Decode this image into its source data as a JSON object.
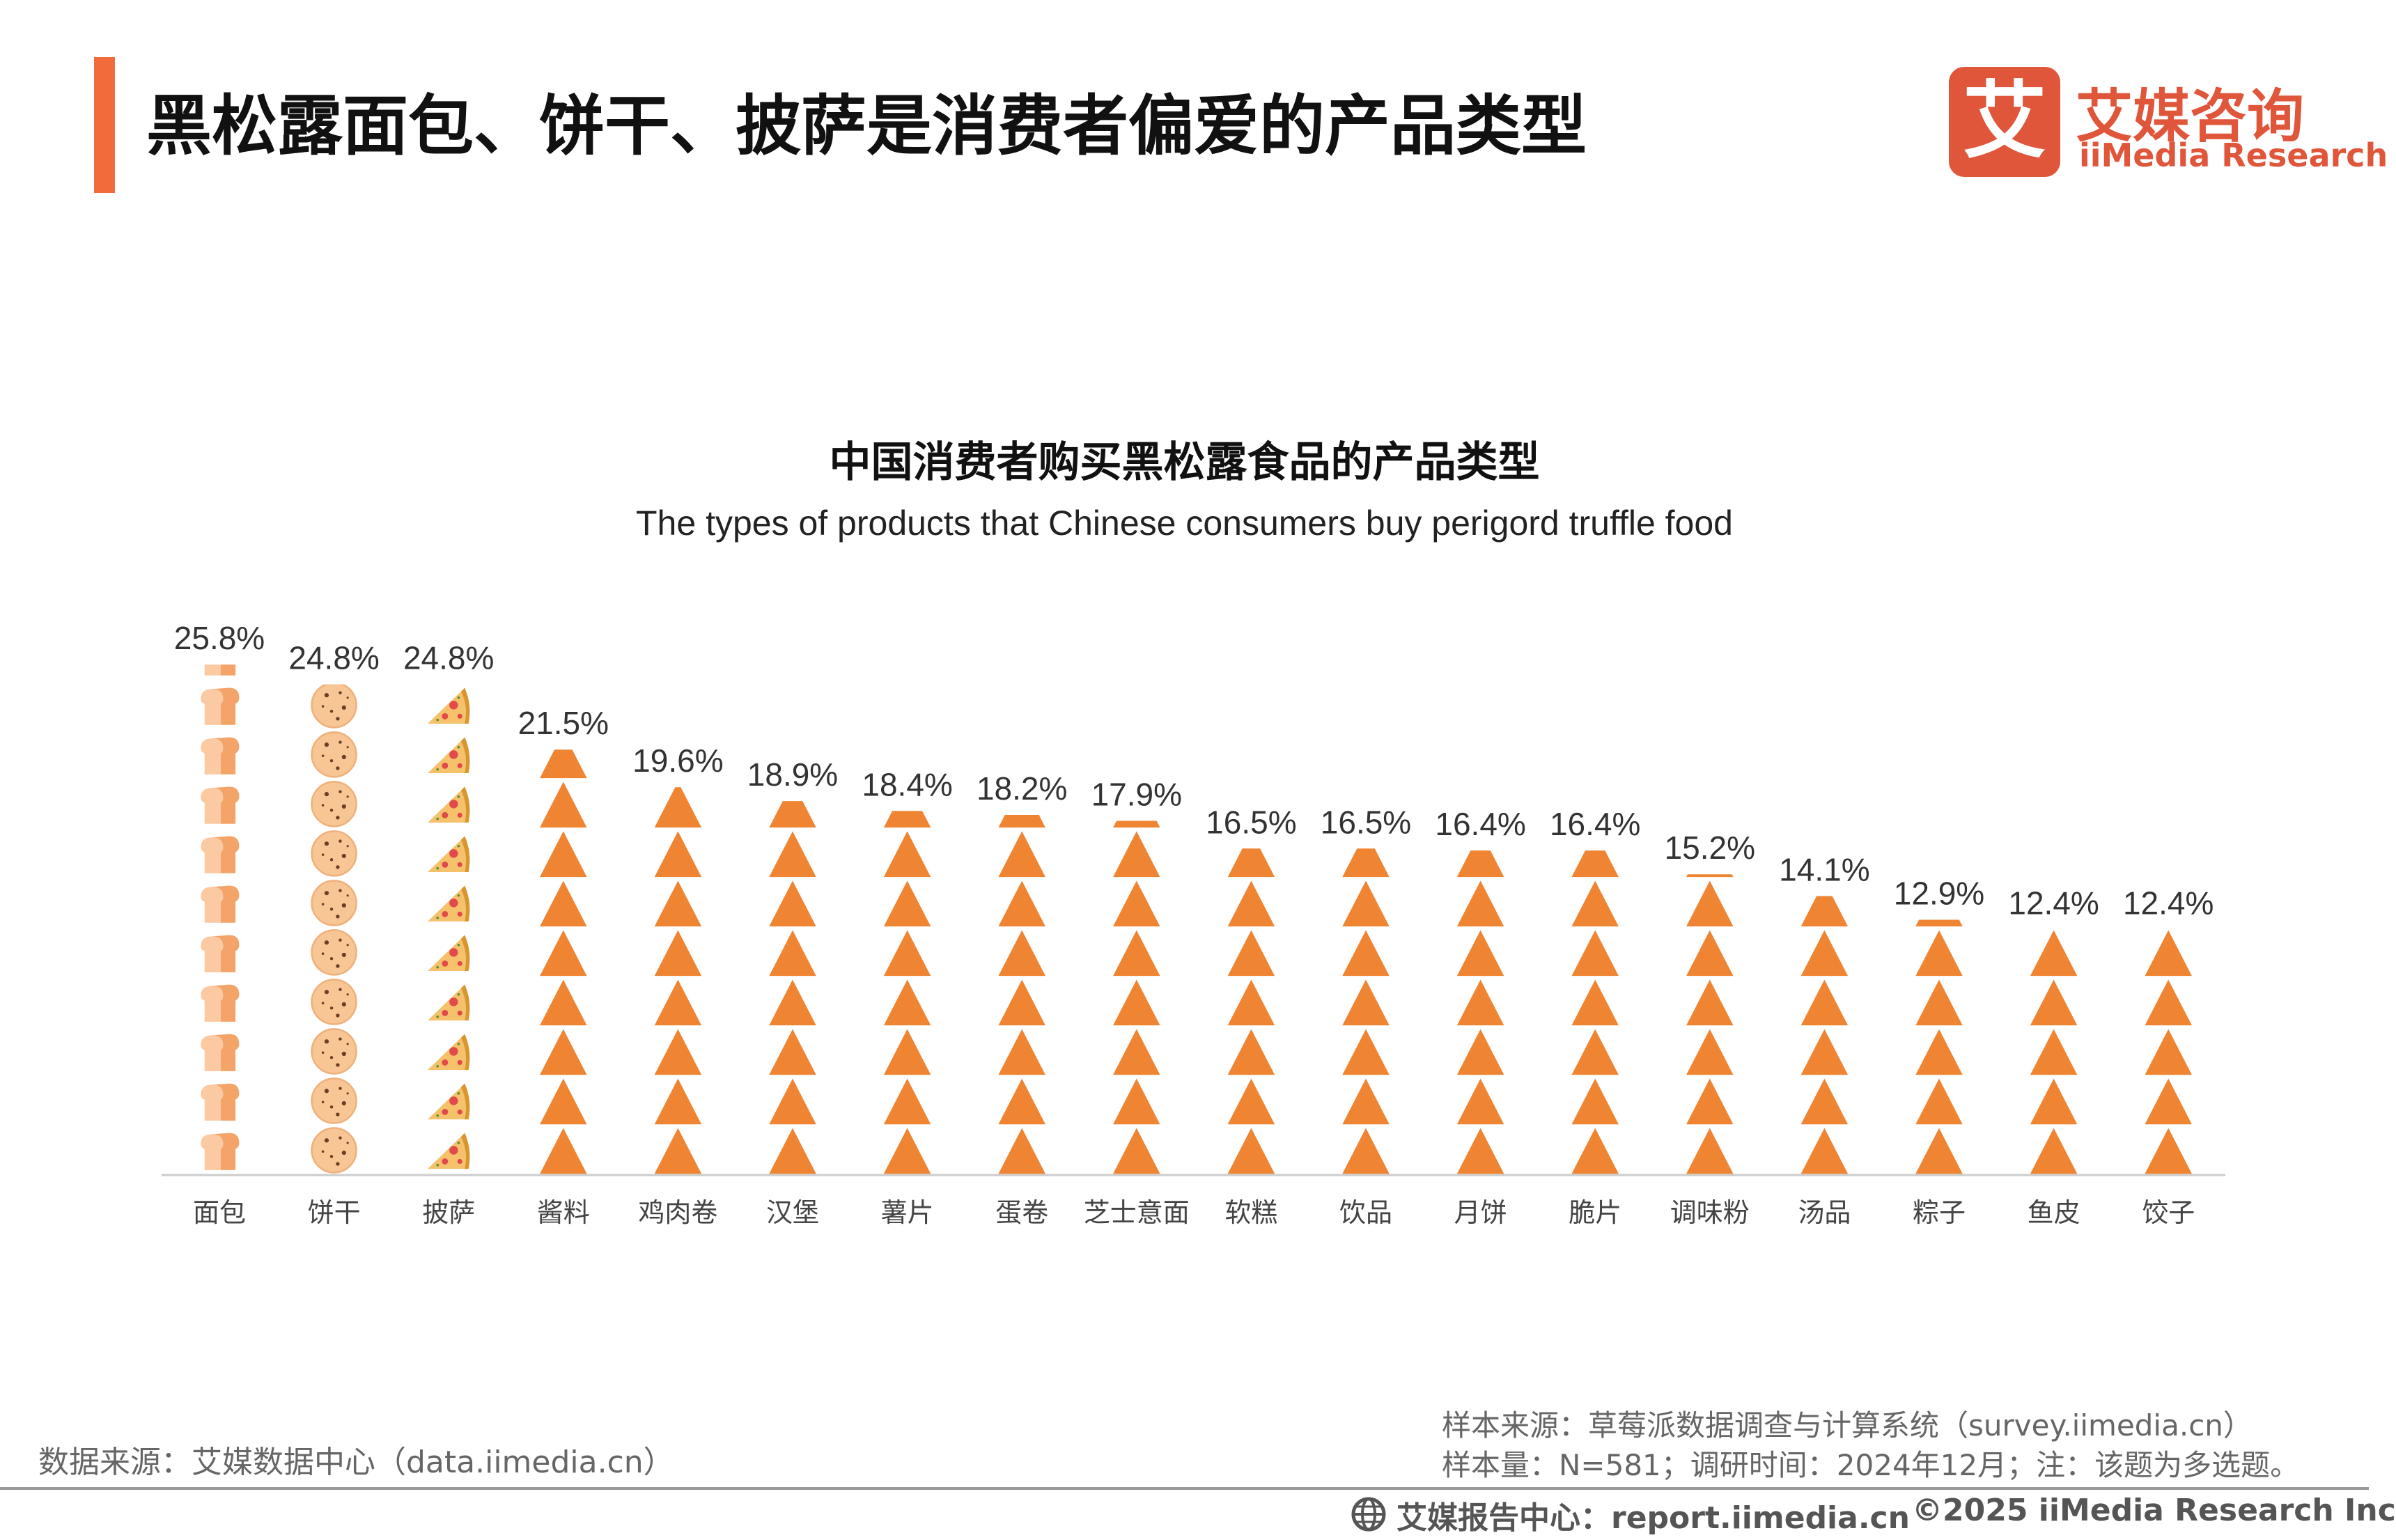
{
  "header": {
    "title": "黑松露面包、饼干、披萨是消费者偏爱的产品类型",
    "accent_color": "#f26b3a"
  },
  "logo": {
    "mark": "艾",
    "name_cn": "艾媒咨询",
    "name_en": "iiMedia Research",
    "color": "#e0563b"
  },
  "chart_data": {
    "type": "bar",
    "title": "中国消费者购买黑松露食品的产品类型",
    "subtitle": "The types of products that Chinese consumers buy perigord truffle food",
    "categories": [
      "面包",
      "饼干",
      "披萨",
      "酱料",
      "鸡肉卷",
      "汉堡",
      "薯片",
      "蛋卷",
      "芝士意面",
      "软糕",
      "饮品",
      "月饼",
      "脆片",
      "调味粉",
      "汤品",
      "粽子",
      "鱼皮",
      "饺子"
    ],
    "values": [
      25.8,
      24.8,
      24.8,
      21.5,
      19.6,
      18.9,
      18.4,
      18.2,
      17.9,
      16.5,
      16.5,
      16.4,
      16.4,
      15.2,
      14.1,
      12.9,
      12.4,
      12.4
    ],
    "value_labels": [
      "25.8%",
      "24.8%",
      "24.8%",
      "21.5%",
      "19.6%",
      "18.9%",
      "18.4%",
      "18.2%",
      "17.9%",
      "16.5%",
      "16.5%",
      "16.4%",
      "16.4%",
      "15.2%",
      "14.1%",
      "12.9%",
      "12.4%",
      "12.4%"
    ],
    "ylim": [
      0,
      27
    ],
    "units_per_icon": 2.5,
    "icons": [
      "bread-icon",
      "cookie-icon",
      "pizza-icon",
      "triangle-icon",
      "triangle-icon",
      "triangle-icon",
      "triangle-icon",
      "triangle-icon",
      "triangle-icon",
      "triangle-icon",
      "triangle-icon",
      "triangle-icon",
      "triangle-icon",
      "triangle-icon",
      "triangle-icon",
      "triangle-icon",
      "triangle-icon",
      "triangle-icon"
    ],
    "bar_color": "#ef8533",
    "grid": false
  },
  "footer": {
    "source_left": "数据来源：艾媒数据中心（data.iimedia.cn）",
    "sample_source": "样本来源：草莓派数据调查与计算系统（survey.iimedia.cn）",
    "sample_size": "样本量：N=581；调研时间：2024年12月；注：该题为多选题。",
    "report_center": "艾媒报告中心：report.iimedia.cn",
    "copyright": "©2025  iiMedia Research  Inc"
  }
}
